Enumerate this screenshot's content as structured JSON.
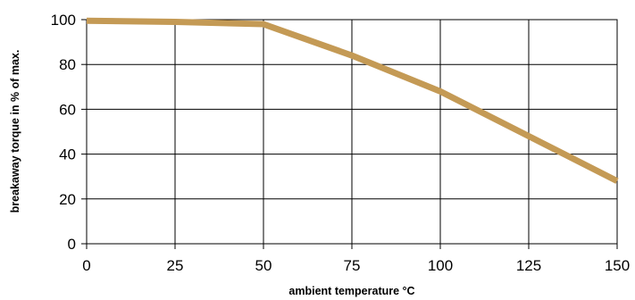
{
  "chart_data": {
    "type": "line",
    "xlabel": "ambient temperature °C",
    "ylabel": "breakaway torque in % of max.",
    "xlim": [
      0,
      150
    ],
    "ylim": [
      0,
      100
    ],
    "xticks": [
      0,
      25,
      50,
      75,
      100,
      125,
      150
    ],
    "yticks": [
      0,
      20,
      40,
      60,
      80,
      100
    ],
    "grid": true,
    "series": [
      {
        "x": [
          0,
          25,
          50,
          75,
          100,
          125,
          150
        ],
        "y": [
          99.5,
          99,
          98,
          84,
          68,
          48,
          28
        ],
        "color": "#c49a55"
      }
    ]
  }
}
